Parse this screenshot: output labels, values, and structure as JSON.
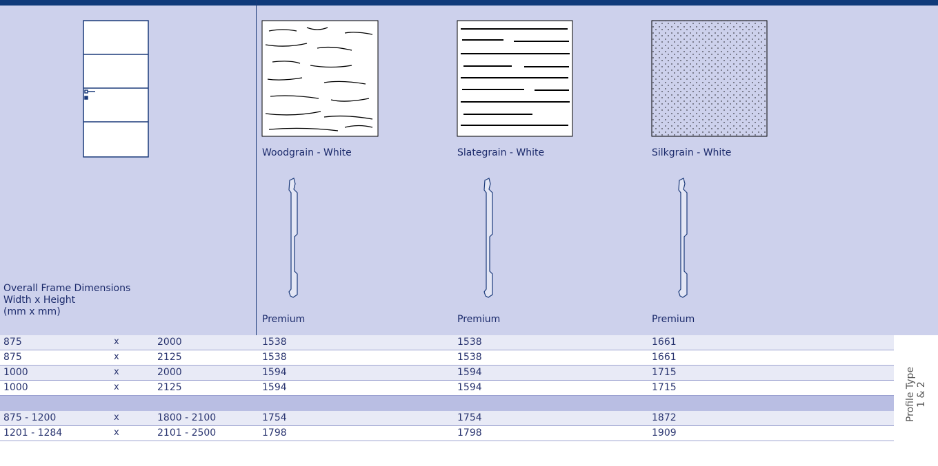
{
  "frame_label": [
    "Overall Frame Dimensions",
    "Width x Height",
    "(mm x mm)"
  ],
  "finishes": [
    {
      "name": "Woodgrain - White",
      "profile": "Premium"
    },
    {
      "name": "Slategrain - White",
      "profile": "Premium"
    },
    {
      "name": "Silkgrain - White",
      "profile": "Premium"
    }
  ],
  "groups": [
    [
      [
        "875",
        "x",
        "2000",
        "1538",
        "1538",
        "1661"
      ],
      [
        "875",
        "x",
        "2125",
        "1538",
        "1538",
        "1661"
      ],
      [
        "1000",
        "x",
        "2000",
        "1594",
        "1594",
        "1715"
      ],
      [
        "1000",
        "x",
        "2125",
        "1594",
        "1594",
        "1715"
      ]
    ],
    [
      [
        "875 - 1200",
        "x",
        "1800 - 2100",
        "1754",
        "1754",
        "1872"
      ],
      [
        "1201 - 1284",
        "x",
        "2101 - 2500",
        "1798",
        "1798",
        "1909"
      ]
    ]
  ],
  "side_label": [
    "Profile Type",
    "1 & 2"
  ]
}
